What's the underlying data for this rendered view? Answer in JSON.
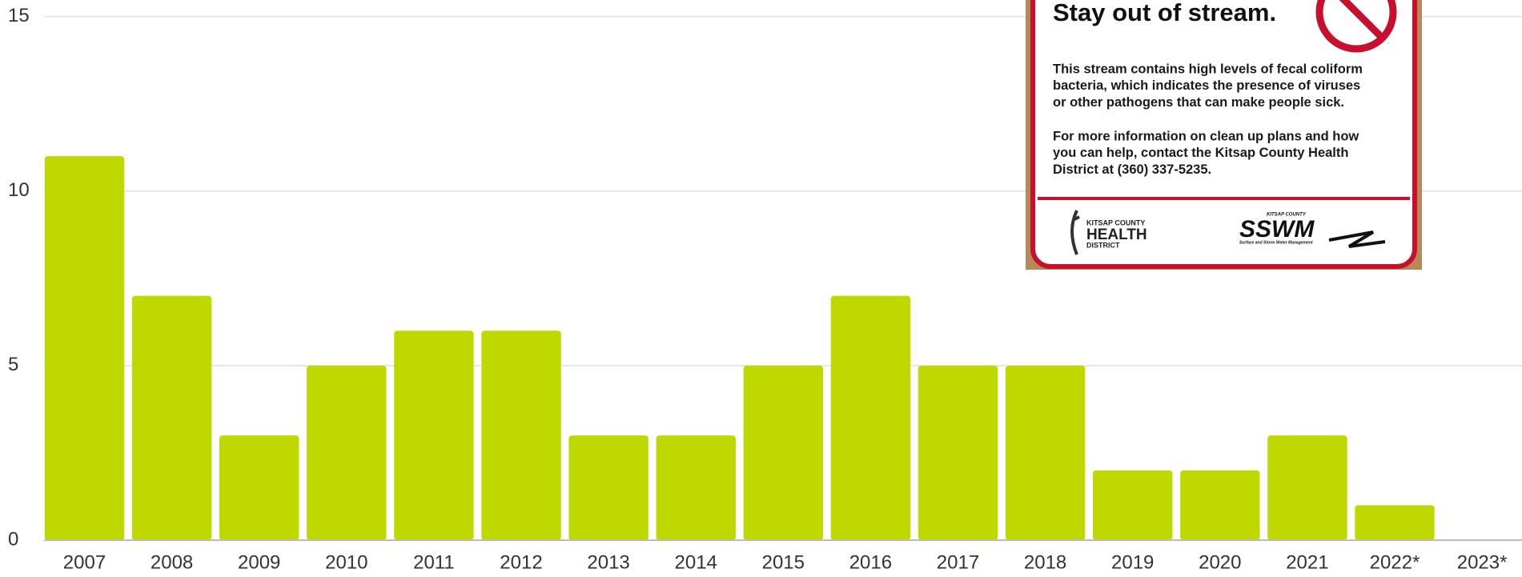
{
  "chart_data": {
    "type": "bar",
    "categories": [
      "2007",
      "2008",
      "2009",
      "2010",
      "2011",
      "2012",
      "2013",
      "2014",
      "2015",
      "2016",
      "2017",
      "2018",
      "2019",
      "2020",
      "2021",
      "2022*",
      "2023*"
    ],
    "values": [
      11,
      7,
      3,
      5,
      6,
      6,
      3,
      3,
      5,
      7,
      5,
      5,
      2,
      2,
      3,
      1,
      0
    ],
    "color": "#bfd900",
    "ylim": [
      0,
      15
    ],
    "yticks": [
      0,
      5,
      10,
      15
    ],
    "grid": true
  },
  "sign": {
    "title": "Stay out of stream.",
    "paragraphs": [
      [
        "This stream contains high levels of fecal coliform",
        "bacteria, which indicates the presence of viruses",
        "or other pathogens that can make people sick."
      ],
      [
        "For more information on clean up plans and how",
        "you can help, contact the Kitsap County Health",
        "District at (360) 337-5235."
      ]
    ],
    "logo_left": [
      "KITSAP COUNTY",
      "HEALTH",
      "DISTRICT"
    ],
    "logo_right": [
      "KITSAP COUNTY",
      "SSWM",
      "Surface and Storm Water Management"
    ]
  }
}
